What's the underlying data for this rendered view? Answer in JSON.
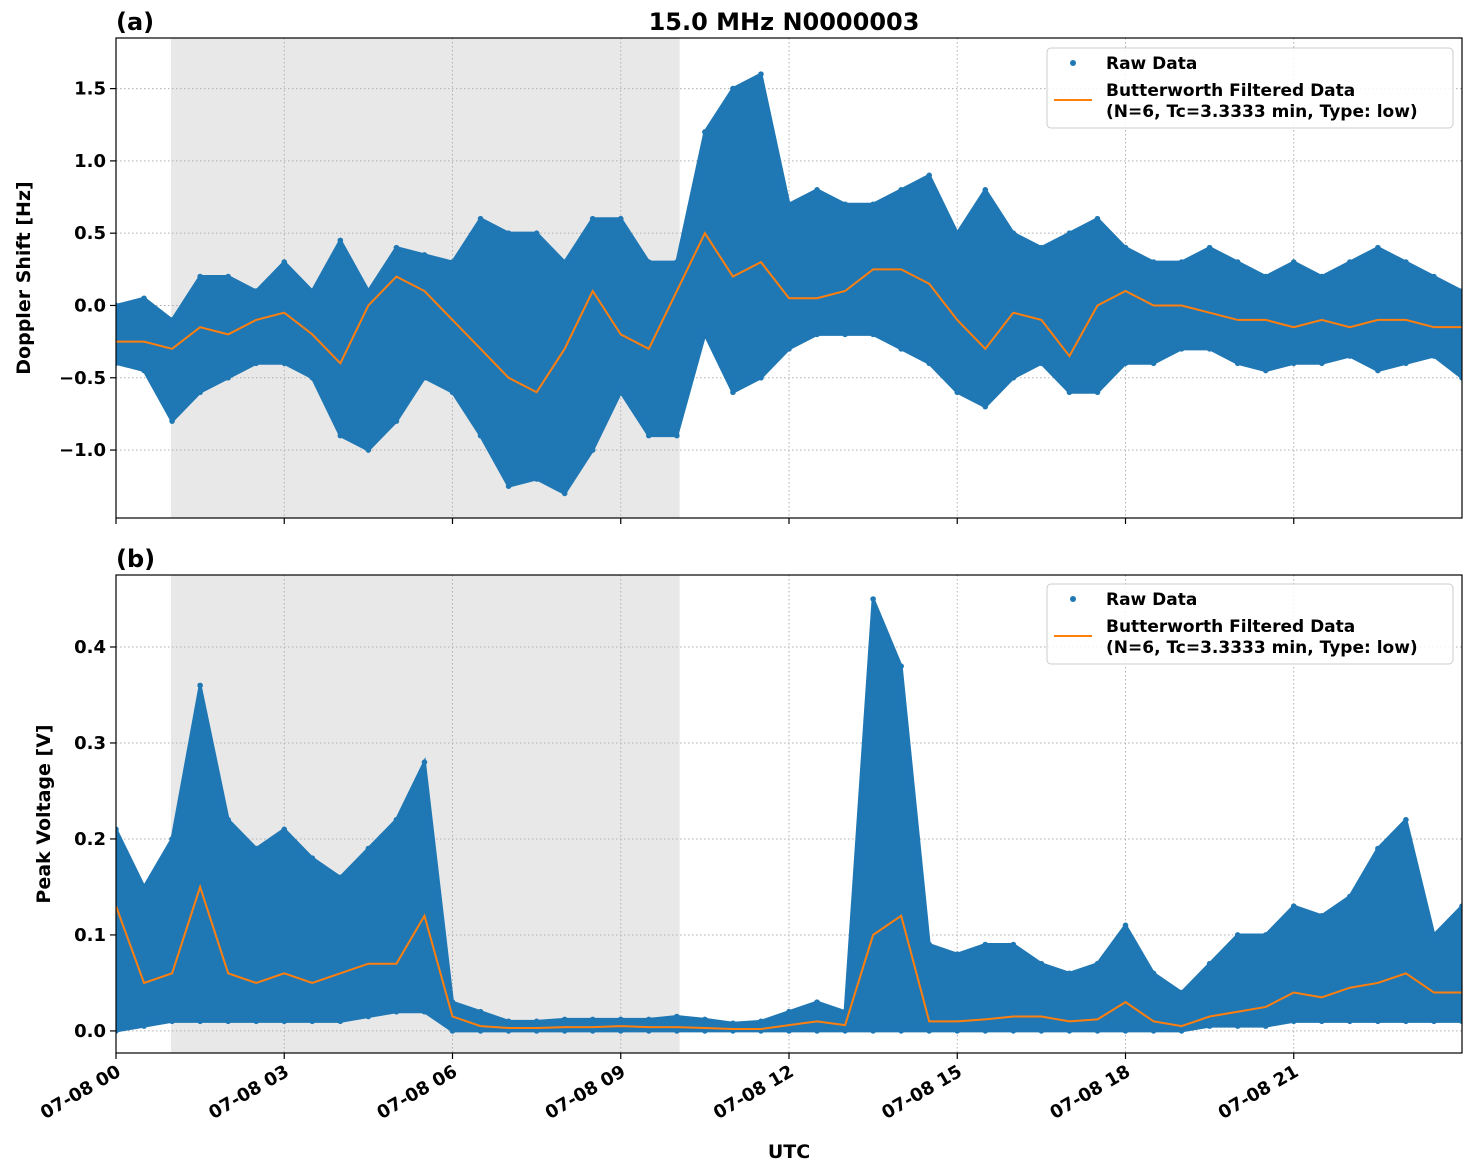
{
  "title": "15.0 MHz N0000003",
  "xlabel": "UTC",
  "colors": {
    "raw": "#1f77b4",
    "filtered": "#ff7f0e",
    "shade": "#e8e8e8"
  },
  "chart_data": [
    {
      "type": "scatter+line",
      "panel_label": "(a)",
      "ylabel": "Doppler Shift [Hz]",
      "xlim": [
        0,
        24
      ],
      "ylim": [
        -1.47,
        1.85
      ],
      "grid": true,
      "legend_position": "top-right",
      "shaded_interval_hours": [
        0.98,
        10.05
      ],
      "x_ticks": [
        0,
        3,
        6,
        9,
        12,
        15,
        18,
        21
      ],
      "x_tick_labels": [
        "07-08 00",
        "07-08 03",
        "07-08 06",
        "07-08 09",
        "07-08 12",
        "07-08 15",
        "07-08 18",
        "07-08 21"
      ],
      "y_ticks": [
        -1.0,
        -0.5,
        0.0,
        0.5,
        1.0,
        1.5
      ],
      "y_tick_labels": [
        "−1.0",
        "−0.5",
        "0.0",
        "0.5",
        "1.0",
        "1.5"
      ],
      "legend": [
        "Raw Data",
        "Butterworth Filtered Data",
        "(N=6, Tc=3.3333 min, Type: low)"
      ],
      "x_hours": [
        0,
        0.5,
        1,
        1.5,
        2,
        2.5,
        3,
        3.5,
        4,
        4.5,
        5,
        5.5,
        6,
        6.5,
        7,
        7.5,
        8,
        8.5,
        9,
        9.5,
        10,
        10.5,
        11,
        11.5,
        12,
        12.5,
        13,
        13.5,
        14,
        14.5,
        15,
        15.5,
        16,
        16.5,
        17,
        17.5,
        18,
        18.5,
        19,
        19.5,
        20,
        20.5,
        21,
        21.5,
        22,
        22.5,
        23,
        23.5,
        24
      ],
      "series": [
        {
          "name": "Raw Data",
          "kind": "raw_envelope",
          "high": [
            0.0,
            0.05,
            -0.1,
            0.2,
            0.2,
            0.1,
            0.3,
            0.1,
            0.45,
            0.1,
            0.4,
            0.35,
            0.3,
            0.6,
            0.5,
            0.5,
            0.3,
            0.6,
            0.6,
            0.3,
            0.3,
            1.2,
            1.5,
            1.6,
            0.7,
            0.8,
            0.7,
            0.7,
            0.8,
            0.9,
            0.5,
            0.8,
            0.5,
            0.4,
            0.5,
            0.6,
            0.4,
            0.3,
            0.3,
            0.4,
            0.3,
            0.2,
            0.3,
            0.2,
            0.3,
            0.4,
            0.3,
            0.2,
            0.1
          ],
          "low": [
            -0.4,
            -0.45,
            -0.8,
            -0.6,
            -0.5,
            -0.4,
            -0.4,
            -0.5,
            -0.9,
            -1.0,
            -0.8,
            -0.5,
            -0.6,
            -0.9,
            -1.25,
            -1.2,
            -1.3,
            -1.0,
            -0.6,
            -0.9,
            -0.9,
            -0.2,
            -0.6,
            -0.5,
            -0.3,
            -0.2,
            -0.2,
            -0.2,
            -0.3,
            -0.4,
            -0.6,
            -0.7,
            -0.5,
            -0.4,
            -0.6,
            -0.6,
            -0.4,
            -0.4,
            -0.3,
            -0.3,
            -0.4,
            -0.45,
            -0.4,
            -0.4,
            -0.35,
            -0.45,
            -0.4,
            -0.35,
            -0.5
          ]
        },
        {
          "name": "Butterworth Filtered Data",
          "kind": "line",
          "values": [
            -0.25,
            -0.25,
            -0.3,
            -0.15,
            -0.2,
            -0.1,
            -0.05,
            -0.2,
            -0.4,
            0.0,
            0.2,
            0.1,
            -0.1,
            -0.3,
            -0.5,
            -0.6,
            -0.3,
            0.1,
            -0.2,
            -0.3,
            0.1,
            0.5,
            0.2,
            0.3,
            0.05,
            0.05,
            0.1,
            0.25,
            0.25,
            0.15,
            -0.1,
            -0.3,
            -0.05,
            -0.1,
            -0.35,
            0.0,
            0.1,
            0.0,
            0.0,
            -0.05,
            -0.1,
            -0.1,
            -0.15,
            -0.1,
            -0.15,
            -0.1,
            -0.1,
            -0.15,
            -0.15
          ]
        }
      ]
    },
    {
      "type": "scatter+line",
      "panel_label": "(b)",
      "ylabel": "Peak Voltage [V]",
      "xlim": [
        0,
        24
      ],
      "ylim": [
        -0.023,
        0.475
      ],
      "grid": true,
      "legend_position": "top-right",
      "shaded_interval_hours": [
        0.98,
        10.05
      ],
      "x_ticks": [
        0,
        3,
        6,
        9,
        12,
        15,
        18,
        21
      ],
      "x_tick_labels": [
        "07-08 00",
        "07-08 03",
        "07-08 06",
        "07-08 09",
        "07-08 12",
        "07-08 15",
        "07-08 18",
        "07-08 21"
      ],
      "y_ticks": [
        0.0,
        0.1,
        0.2,
        0.3,
        0.4
      ],
      "y_tick_labels": [
        "0.0",
        "0.1",
        "0.2",
        "0.3",
        "0.4"
      ],
      "legend": [
        "Raw Data",
        "Butterworth Filtered Data",
        "(N=6, Tc=3.3333 min, Type: low)"
      ],
      "x_hours": [
        0,
        0.5,
        1,
        1.5,
        2,
        2.5,
        3,
        3.5,
        4,
        4.5,
        5,
        5.5,
        6,
        6.5,
        7,
        7.5,
        8,
        8.5,
        9,
        9.5,
        10,
        10.5,
        11,
        11.5,
        12,
        12.5,
        13,
        13.5,
        14,
        14.5,
        15,
        15.5,
        16,
        16.5,
        17,
        17.5,
        18,
        18.5,
        19,
        19.5,
        20,
        20.5,
        21,
        21.5,
        22,
        22.5,
        23,
        23.5,
        24
      ],
      "series": [
        {
          "name": "Raw Data",
          "kind": "raw_envelope",
          "high": [
            0.21,
            0.15,
            0.2,
            0.36,
            0.22,
            0.19,
            0.21,
            0.18,
            0.16,
            0.19,
            0.22,
            0.28,
            0.03,
            0.02,
            0.01,
            0.01,
            0.012,
            0.012,
            0.012,
            0.012,
            0.015,
            0.012,
            0.008,
            0.01,
            0.02,
            0.03,
            0.02,
            0.45,
            0.38,
            0.09,
            0.08,
            0.09,
            0.09,
            0.07,
            0.06,
            0.07,
            0.11,
            0.06,
            0.04,
            0.07,
            0.1,
            0.1,
            0.13,
            0.12,
            0.14,
            0.19,
            0.22,
            0.1,
            0.13
          ],
          "low": [
            0.0,
            0.005,
            0.01,
            0.01,
            0.01,
            0.01,
            0.01,
            0.01,
            0.01,
            0.015,
            0.02,
            0.02,
            0.0,
            0.0,
            0.0,
            0.0,
            0.0,
            0.0,
            0.0,
            0.0,
            0.0,
            0.0,
            0.0,
            0.0,
            0.0,
            0.0,
            0.0,
            0.0,
            0.0,
            0.0,
            0.0,
            0.0,
            0.0,
            0.0,
            0.0,
            0.0,
            0.0,
            0.0,
            0.0,
            0.005,
            0.005,
            0.005,
            0.01,
            0.01,
            0.01,
            0.01,
            0.01,
            0.01,
            0.01
          ]
        },
        {
          "name": "Butterworth Filtered Data",
          "kind": "line",
          "values": [
            0.13,
            0.05,
            0.06,
            0.15,
            0.06,
            0.05,
            0.06,
            0.05,
            0.06,
            0.07,
            0.07,
            0.12,
            0.015,
            0.005,
            0.003,
            0.003,
            0.004,
            0.004,
            0.005,
            0.004,
            0.004,
            0.003,
            0.002,
            0.002,
            0.006,
            0.01,
            0.006,
            0.1,
            0.12,
            0.01,
            0.01,
            0.012,
            0.015,
            0.015,
            0.01,
            0.012,
            0.03,
            0.01,
            0.005,
            0.015,
            0.02,
            0.025,
            0.04,
            0.035,
            0.045,
            0.05,
            0.06,
            0.04,
            0.04
          ]
        }
      ]
    }
  ]
}
